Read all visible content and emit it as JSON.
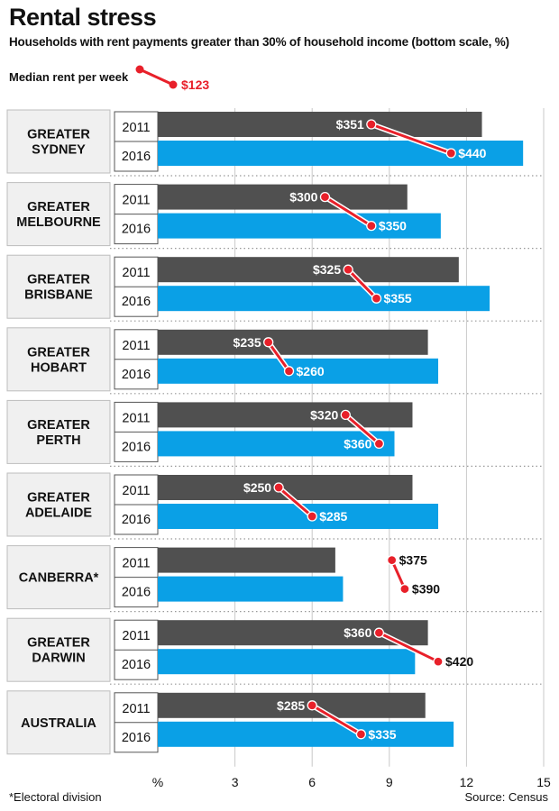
{
  "title": "Rental stress",
  "subtitle": "Households with rent payments greater than 30% of household income (bottom scale, %)",
  "legend": {
    "label": "Median rent per week",
    "sample_value": "$123"
  },
  "footnote": "*Electoral division",
  "source": "Source: Census",
  "colors": {
    "bar_2011": "#505050",
    "bar_2016": "#0aa0e6",
    "rent_marker": "#e8202a",
    "panel_bg": "#f0f0f0"
  },
  "chart_data": {
    "type": "bar",
    "orientation": "horizontal",
    "xlabel": "%",
    "xlim": [
      0,
      15
    ],
    "xticks": [
      3,
      6,
      9,
      12,
      15
    ],
    "grid": true,
    "years": [
      "2011",
      "2016"
    ],
    "categories": [
      {
        "name": "GREATER SYDNEY",
        "lines": [
          "GREATER",
          "SYDNEY"
        ],
        "values": [
          12.6,
          14.2
        ],
        "rent": [
          "$351",
          "$440"
        ],
        "rent_x": [
          8.3,
          11.4
        ],
        "label_side": [
          "left",
          "right"
        ]
      },
      {
        "name": "GREATER MELBOURNE",
        "lines": [
          "GREATER",
          "MELBOURNE"
        ],
        "values": [
          9.7,
          11.0
        ],
        "rent": [
          "$300",
          "$350"
        ],
        "rent_x": [
          6.5,
          8.3
        ],
        "label_side": [
          "left",
          "right"
        ]
      },
      {
        "name": "GREATER BRISBANE",
        "lines": [
          "GREATER",
          "BRISBANE"
        ],
        "values": [
          11.7,
          12.9
        ],
        "rent": [
          "$325",
          "$355"
        ],
        "rent_x": [
          7.4,
          8.5
        ],
        "label_side": [
          "left",
          "right"
        ]
      },
      {
        "name": "GREATER HOBART",
        "lines": [
          "GREATER",
          "HOBART"
        ],
        "values": [
          10.5,
          10.9
        ],
        "rent": [
          "$235",
          "$260"
        ],
        "rent_x": [
          4.3,
          5.1
        ],
        "label_side": [
          "left",
          "right"
        ]
      },
      {
        "name": "GREATER PERTH",
        "lines": [
          "GREATER",
          "PERTH"
        ],
        "values": [
          9.9,
          9.2
        ],
        "rent": [
          "$320",
          "$360"
        ],
        "rent_x": [
          7.3,
          8.6
        ],
        "label_side": [
          "left",
          "left"
        ]
      },
      {
        "name": "GREATER ADELAIDE",
        "lines": [
          "GREATER",
          "ADELAIDE"
        ],
        "values": [
          9.9,
          10.9
        ],
        "rent": [
          "$250",
          "$285"
        ],
        "rent_x": [
          4.7,
          6.0
        ],
        "label_side": [
          "left",
          "right"
        ]
      },
      {
        "name": "CANBERRA*",
        "lines": [
          "CANBERRA*"
        ],
        "values": [
          6.9,
          7.2
        ],
        "rent": [
          "$375",
          "$390"
        ],
        "rent_x": [
          9.1,
          9.6
        ],
        "label_side": [
          "right",
          "right"
        ]
      },
      {
        "name": "GREATER DARWIN",
        "lines": [
          "GREATER",
          "DARWIN"
        ],
        "values": [
          10.5,
          10.0
        ],
        "rent": [
          "$360",
          "$420"
        ],
        "rent_x": [
          8.6,
          10.9
        ],
        "label_side": [
          "left",
          "right"
        ]
      },
      {
        "name": "AUSTRALIA",
        "lines": [
          "AUSTRALIA"
        ],
        "values": [
          10.4,
          11.5
        ],
        "rent": [
          "$285",
          "$335"
        ],
        "rent_x": [
          6.0,
          7.9
        ],
        "label_side": [
          "left",
          "right"
        ]
      }
    ]
  }
}
